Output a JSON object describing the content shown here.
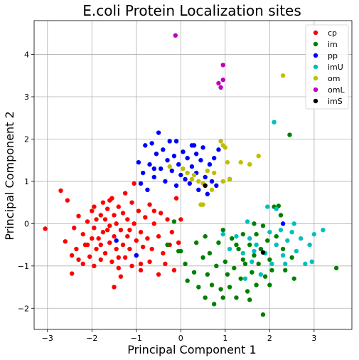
{
  "chart_data": {
    "type": "scatter",
    "title": "E.coli Protein Localization sites",
    "xlabel": "Principal Component 1",
    "ylabel": "Principal Component 2",
    "xlim": [
      -3.3,
      3.85
    ],
    "ylim": [
      -2.5,
      4.8
    ],
    "xticks": [
      -3,
      -2,
      -1,
      0,
      1,
      2,
      3
    ],
    "yticks": [
      -2,
      -1,
      0,
      1,
      2,
      3,
      4
    ],
    "grid": true,
    "legend_position": "top-right",
    "series": [
      {
        "name": "cp",
        "color": "#ff0000",
        "points": [
          [
            -3.05,
            -0.12
          ],
          [
            -2.7,
            0.78
          ],
          [
            -2.55,
            0.55
          ],
          [
            -2.6,
            -0.42
          ],
          [
            -2.45,
            -0.75
          ],
          [
            -2.35,
            -0.6
          ],
          [
            -2.4,
            -0.1
          ],
          [
            -2.3,
            0.18
          ],
          [
            -2.2,
            -0.25
          ],
          [
            -2.15,
            -0.5
          ],
          [
            -2.1,
            0.05
          ],
          [
            -2.05,
            -0.78
          ],
          [
            -2.0,
            -0.35
          ],
          [
            -2.0,
            0.3
          ],
          [
            -1.95,
            -0.1
          ],
          [
            -1.9,
            -0.6
          ],
          [
            -1.9,
            0.1
          ],
          [
            -1.85,
            -0.35
          ],
          [
            -1.8,
            0.2
          ],
          [
            -1.8,
            -0.5
          ],
          [
            -1.75,
            0.5
          ],
          [
            -1.75,
            -0.2
          ],
          [
            -1.7,
            -0.7
          ],
          [
            -1.7,
            0.1
          ],
          [
            -1.65,
            0.35
          ],
          [
            -1.6,
            -0.45
          ],
          [
            -1.6,
            -0.05
          ],
          [
            -1.55,
            -0.9
          ],
          [
            -1.55,
            0.6
          ],
          [
            -1.5,
            0.2
          ],
          [
            -1.5,
            -0.3
          ],
          [
            -1.45,
            -0.6
          ],
          [
            -1.45,
            0.0
          ],
          [
            -1.4,
            -1.05
          ],
          [
            -1.4,
            0.4
          ],
          [
            -1.35,
            -0.15
          ],
          [
            -1.3,
            -0.5
          ],
          [
            -1.3,
            0.25
          ],
          [
            -1.25,
            -0.8
          ],
          [
            -1.2,
            0.1
          ],
          [
            -1.2,
            -0.3
          ],
          [
            -1.15,
            -0.6
          ],
          [
            -1.1,
            -1.0
          ],
          [
            -1.1,
            0.5
          ],
          [
            -1.05,
            0.0
          ],
          [
            -1.0,
            -0.4
          ],
          [
            -1.0,
            -0.75
          ],
          [
            -0.95,
            0.3
          ],
          [
            -0.9,
            -1.1
          ],
          [
            -0.9,
            -0.2
          ],
          [
            -0.85,
            -0.55
          ],
          [
            -0.8,
            0.15
          ],
          [
            -0.75,
            -0.35
          ],
          [
            -0.7,
            -0.9
          ],
          [
            -0.7,
            0.45
          ],
          [
            -0.65,
            -0.6
          ],
          [
            -0.6,
            0.0
          ],
          [
            -0.5,
            -1.2
          ],
          [
            -0.5,
            -0.3
          ],
          [
            -0.45,
            0.25
          ],
          [
            -0.4,
            -0.7
          ],
          [
            -0.35,
            -0.95
          ],
          [
            -0.3,
            0.1
          ],
          [
            -0.25,
            -0.5
          ],
          [
            -0.2,
            -0.2
          ],
          [
            -0.15,
            -1.1
          ],
          [
            -0.1,
            0.6
          ],
          [
            -0.05,
            -0.45
          ],
          [
            0.0,
            0.1
          ],
          [
            -1.5,
            -1.5
          ],
          [
            -2.2,
            -0.95
          ],
          [
            -2.45,
            -1.18
          ],
          [
            -1.25,
            0.72
          ],
          [
            -1.05,
            0.95
          ],
          [
            -1.65,
            -0.15
          ],
          [
            -1.35,
            -1.25
          ],
          [
            -0.9,
            -0.95
          ],
          [
            -1.8,
            -0.85
          ],
          [
            -1.95,
            -1.0
          ],
          [
            -2.3,
            -0.85
          ],
          [
            -1.6,
            0.55
          ],
          [
            -1.4,
            -0.8
          ],
          [
            -1.15,
            -0.15
          ],
          [
            -0.6,
            0.3
          ],
          [
            -2.1,
            -0.5
          ],
          [
            -1.95,
            0.4
          ]
        ]
      },
      {
        "name": "im",
        "color": "#008000",
        "points": [
          [
            0.0,
            -0.65
          ],
          [
            0.15,
            -1.35
          ],
          [
            0.3,
            -1.15
          ],
          [
            0.35,
            -0.45
          ],
          [
            0.4,
            -1.5
          ],
          [
            0.5,
            -0.8
          ],
          [
            0.55,
            -1.75
          ],
          [
            0.6,
            -1.2
          ],
          [
            0.65,
            -0.7
          ],
          [
            0.7,
            -1.45
          ],
          [
            0.75,
            -1.9
          ],
          [
            0.8,
            -1.0
          ],
          [
            0.85,
            -0.45
          ],
          [
            0.9,
            -1.55
          ],
          [
            0.95,
            -0.15
          ],
          [
            1.0,
            -0.9
          ],
          [
            1.05,
            -1.2
          ],
          [
            1.1,
            -1.5
          ],
          [
            1.15,
            -0.35
          ],
          [
            1.2,
            -1.05
          ],
          [
            1.25,
            -1.75
          ],
          [
            1.3,
            -0.6
          ],
          [
            1.35,
            -1.3
          ],
          [
            1.4,
            -0.25
          ],
          [
            1.45,
            -0.95
          ],
          [
            1.5,
            -1.6
          ],
          [
            1.55,
            -0.5
          ],
          [
            1.6,
            -1.15
          ],
          [
            1.65,
            -0.75
          ],
          [
            1.7,
            -0.25
          ],
          [
            1.7,
            -1.45
          ],
          [
            1.75,
            -0.95
          ],
          [
            1.8,
            -0.6
          ],
          [
            1.85,
            -2.15
          ],
          [
            1.9,
            -1.25
          ],
          [
            1.95,
            -0.4
          ],
          [
            2.0,
            -0.85
          ],
          [
            2.05,
            -1.1
          ],
          [
            2.1,
            0.4
          ],
          [
            2.15,
            -0.3
          ],
          [
            2.2,
            0.42
          ],
          [
            2.25,
            0.2
          ],
          [
            2.3,
            -0.6
          ],
          [
            2.35,
            -1.1
          ],
          [
            2.45,
            2.1
          ],
          [
            2.5,
            -0.8
          ],
          [
            2.55,
            -1.3
          ],
          [
            3.5,
            -1.05
          ],
          [
            0.95,
            -1.75
          ],
          [
            1.55,
            -1.8
          ],
          [
            0.55,
            -0.3
          ],
          [
            1.25,
            -0.5
          ],
          [
            1.85,
            -0.05
          ],
          [
            -0.3,
            -0.5
          ],
          [
            -0.15,
            0.05
          ],
          [
            -0.05,
            -0.65
          ],
          [
            0.1,
            -0.95
          ],
          [
            1.4,
            -0.85
          ],
          [
            1.65,
            0.0
          ],
          [
            2.0,
            -1.45
          ]
        ]
      },
      {
        "name": "pp",
        "color": "#0000ff",
        "points": [
          [
            -0.95,
            1.45
          ],
          [
            -0.9,
            0.95
          ],
          [
            -0.85,
            1.2
          ],
          [
            -0.8,
            1.85
          ],
          [
            -0.75,
            0.8
          ],
          [
            -0.7,
            1.4
          ],
          [
            -0.65,
            1.9
          ],
          [
            -0.6,
            1.1
          ],
          [
            -0.55,
            1.65
          ],
          [
            -0.5,
            2.15
          ],
          [
            -0.45,
            1.3
          ],
          [
            -0.4,
            1.75
          ],
          [
            -0.35,
            1.0
          ],
          [
            -0.3,
            1.5
          ],
          [
            -0.25,
            1.95
          ],
          [
            -0.2,
            1.25
          ],
          [
            -0.15,
            1.6
          ],
          [
            -0.1,
            0.9
          ],
          [
            -0.05,
            1.4
          ],
          [
            0.0,
            1.15
          ],
          [
            0.05,
            1.7
          ],
          [
            0.1,
            1.05
          ],
          [
            0.15,
            1.55
          ],
          [
            0.2,
            0.95
          ],
          [
            0.25,
            1.35
          ],
          [
            0.3,
            1.85
          ],
          [
            0.35,
            1.2
          ],
          [
            0.4,
            0.8
          ],
          [
            0.45,
            1.5
          ],
          [
            0.5,
            1.8
          ],
          [
            0.55,
            1.1
          ],
          [
            0.6,
            0.7
          ],
          [
            0.65,
            1.4
          ],
          [
            0.7,
            1.0
          ],
          [
            0.75,
            1.55
          ],
          [
            0.8,
            0.9
          ],
          [
            0.85,
            1.75
          ],
          [
            -0.1,
            1.95
          ],
          [
            0.35,
            1.65
          ],
          [
            -1.0,
            -0.75
          ],
          [
            -1.45,
            -0.4
          ],
          [
            2.3,
            0.0
          ],
          [
            1.1,
            1.05
          ],
          [
            -0.6,
            1.3
          ],
          [
            0.25,
            1.85
          ]
        ]
      },
      {
        "name": "imU",
        "color": "#00bfbf",
        "points": [
          [
            0.95,
            -0.25
          ],
          [
            1.1,
            -0.6
          ],
          [
            1.25,
            -0.3
          ],
          [
            1.4,
            -0.7
          ],
          [
            1.5,
            0.05
          ],
          [
            1.55,
            -0.35
          ],
          [
            1.6,
            -0.9
          ],
          [
            1.7,
            -0.5
          ],
          [
            1.8,
            -1.2
          ],
          [
            1.9,
            -0.7
          ],
          [
            2.0,
            -0.2
          ],
          [
            2.05,
            -0.95
          ],
          [
            2.1,
            2.4
          ],
          [
            2.15,
            -0.5
          ],
          [
            2.25,
            -0.15
          ],
          [
            2.3,
            -0.75
          ],
          [
            2.4,
            -0.4
          ],
          [
            2.5,
            -0.2
          ],
          [
            2.6,
            -0.65
          ],
          [
            2.7,
            -0.35
          ],
          [
            2.8,
            -0.95
          ],
          [
            2.9,
            -0.5
          ],
          [
            2.95,
            -0.9
          ],
          [
            3.0,
            -0.25
          ],
          [
            3.2,
            -0.15
          ],
          [
            1.95,
            0.4
          ],
          [
            1.65,
            -0.65
          ],
          [
            2.35,
            -0.95
          ],
          [
            2.55,
            0.0
          ],
          [
            1.45,
            -1.3
          ],
          [
            2.15,
            0.35
          ]
        ]
      },
      {
        "name": "om",
        "color": "#bfbf00",
        "points": [
          [
            -0.25,
            1.35
          ],
          [
            0.15,
            1.2
          ],
          [
            0.3,
            1.15
          ],
          [
            0.4,
            1.0
          ],
          [
            0.5,
            0.95
          ],
          [
            0.5,
            0.45
          ],
          [
            0.6,
            1.25
          ],
          [
            0.7,
            0.8
          ],
          [
            0.75,
            1.2
          ],
          [
            0.9,
            1.95
          ],
          [
            0.95,
            1.85
          ],
          [
            1.0,
            1.8
          ],
          [
            1.05,
            1.45
          ],
          [
            1.1,
            1.05
          ],
          [
            1.35,
            1.45
          ],
          [
            1.55,
            1.4
          ],
          [
            1.75,
            1.6
          ],
          [
            2.3,
            3.5
          ],
          [
            0.95,
            1.0
          ],
          [
            0.45,
            0.45
          ],
          [
            0.25,
            1.05
          ],
          [
            0.05,
            1.3
          ]
        ]
      },
      {
        "name": "omL",
        "color": "#bf00bf",
        "points": [
          [
            -0.12,
            4.45
          ],
          [
            0.95,
            3.75
          ],
          [
            0.95,
            3.4
          ],
          [
            0.85,
            3.32
          ],
          [
            0.9,
            3.22
          ]
        ]
      },
      {
        "name": "imS",
        "color": "#000000",
        "points": [
          [
            0.55,
            0.9
          ],
          [
            1.85,
            -0.68
          ]
        ]
      }
    ]
  }
}
